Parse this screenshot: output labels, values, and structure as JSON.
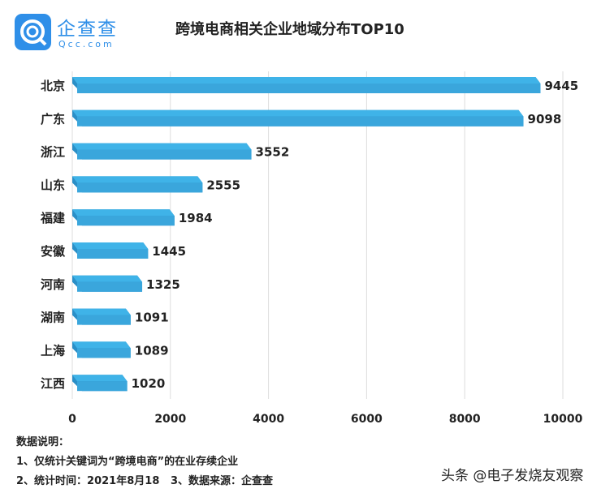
{
  "logo": {
    "name": "企查查",
    "url": "Qcc.com"
  },
  "chart_data": {
    "type": "bar",
    "orientation": "horizontal",
    "title": "跨境电商相关企业地域分布TOP10",
    "categories": [
      "北京",
      "广东",
      "浙江",
      "山东",
      "福建",
      "安徽",
      "河南",
      "湖南",
      "上海",
      "江西"
    ],
    "values": [
      9445,
      9098,
      3552,
      2555,
      1984,
      1445,
      1325,
      1091,
      1089,
      1020
    ],
    "xlim": [
      0,
      10000
    ],
    "xticks": [
      "0",
      "2000",
      "4000",
      "6000",
      "8000",
      "10000"
    ],
    "grid": true,
    "bar_color": "#3fb3e8",
    "xlabel": "",
    "ylabel": ""
  },
  "notes": {
    "heading": "数据说明：",
    "line1": "1、仅统计关键词为“跨境电商”的在业存续企业",
    "line2": "2、统计时间：2021年8月18   3、数据来源：企查查"
  },
  "watermark": "头条 @电子发烧友观察"
}
